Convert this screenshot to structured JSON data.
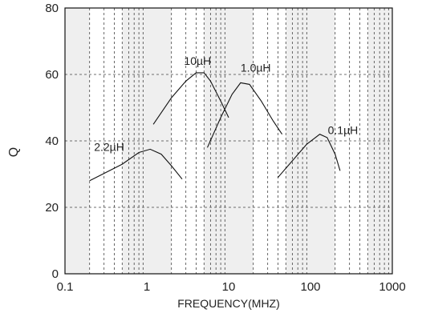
{
  "chart_data": {
    "type": "line",
    "title": "",
    "xlabel": "FREQUENCY(MHZ)",
    "ylabel": "Q",
    "xscale": "log",
    "xlim": [
      0.1,
      1000
    ],
    "ylim": [
      0,
      80
    ],
    "xticks": [
      "0.1",
      "1",
      "10",
      "100",
      "1000"
    ],
    "yticks": [
      "0",
      "20",
      "40",
      "60",
      "80"
    ],
    "grid": true,
    "series": [
      {
        "name": "2.2µH",
        "label": "2.2µH",
        "points": [
          [
            0.2,
            28
          ],
          [
            0.5,
            33
          ],
          [
            0.8,
            36.5
          ],
          [
            1.1,
            37.5
          ],
          [
            1.5,
            36
          ],
          [
            2.0,
            32.5
          ],
          [
            2.7,
            28.5
          ]
        ]
      },
      {
        "name": "10µH",
        "label": "10µH",
        "points": [
          [
            1.2,
            45
          ],
          [
            2.0,
            53
          ],
          [
            3.0,
            58
          ],
          [
            4.0,
            60.5
          ],
          [
            5.0,
            60.5
          ],
          [
            6.0,
            58
          ],
          [
            8.0,
            52
          ],
          [
            10.0,
            47
          ]
        ]
      },
      {
        "name": "1.0µH",
        "label": "1.0µH",
        "points": [
          [
            5.5,
            38
          ],
          [
            8.0,
            47
          ],
          [
            11.0,
            54
          ],
          [
            14.0,
            57.5
          ],
          [
            18.0,
            57
          ],
          [
            25.0,
            52
          ],
          [
            35.0,
            46
          ],
          [
            45.0,
            42
          ]
        ]
      },
      {
        "name": "0.1µH",
        "label": "0.1µH",
        "points": [
          [
            40.0,
            29
          ],
          [
            60.0,
            34
          ],
          [
            90.0,
            39
          ],
          [
            130.0,
            42
          ],
          [
            160.0,
            41
          ],
          [
            200.0,
            36
          ],
          [
            230.0,
            31
          ]
        ]
      }
    ]
  }
}
